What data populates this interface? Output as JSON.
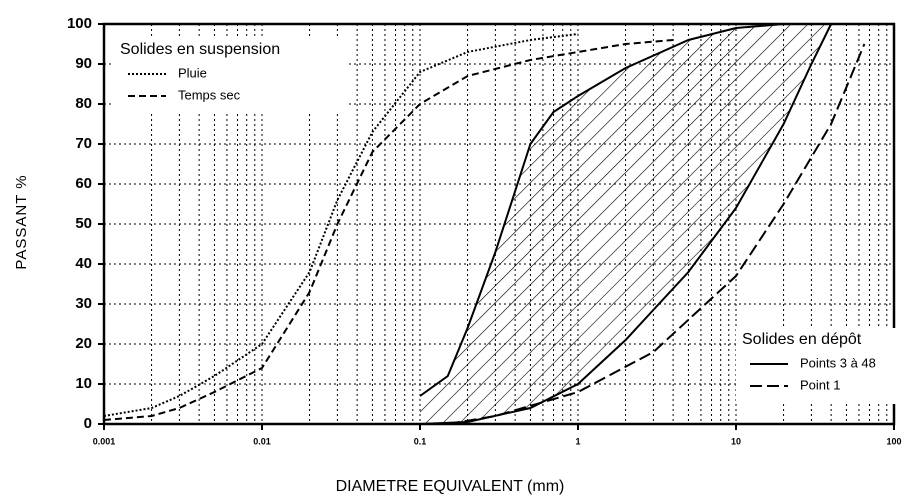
{
  "chart_data": {
    "type": "line",
    "xlabel": "DIAMETRE EQUIVALENT (mm)",
    "ylabel": "PASSANT %",
    "log_x": true,
    "grid": true,
    "xlim": [
      0.001,
      100
    ],
    "ylim": [
      0,
      100
    ],
    "xticks": [
      0.001,
      0.01,
      0.1,
      1,
      10,
      100
    ],
    "xminorticks": [
      0.002,
      0.003,
      0.004,
      0.005,
      0.006,
      0.007,
      0.008,
      0.009,
      0.02,
      0.03,
      0.04,
      0.05,
      0.06,
      0.07,
      0.08,
      0.09,
      0.2,
      0.3,
      0.4,
      0.5,
      0.6,
      0.7,
      0.8,
      0.9,
      2,
      3,
      4,
      5,
      6,
      7,
      8,
      9,
      20,
      30,
      40,
      50,
      60,
      70,
      80,
      90
    ],
    "yticks": [
      0,
      10,
      20,
      30,
      40,
      50,
      60,
      70,
      80,
      90,
      100
    ],
    "legend_groups": [
      {
        "title": "Solides en suspension",
        "position": "upper left"
      },
      {
        "title": "Solides en dépôt",
        "position": "lower right"
      }
    ],
    "series": [
      {
        "name": "Pluie",
        "group": 0,
        "style": "dotted",
        "color": "#000000",
        "x": [
          0.001,
          0.002,
          0.003,
          0.005,
          0.01,
          0.02,
          0.03,
          0.05,
          0.1,
          0.2,
          0.5,
          1
        ],
        "values": [
          2,
          4,
          7,
          12,
          20,
          38,
          56,
          73,
          88,
          93,
          96,
          97.5
        ]
      },
      {
        "name": "Temps sec",
        "group": 0,
        "style": "dashed",
        "color": "#000000",
        "x": [
          0.001,
          0.002,
          0.003,
          0.005,
          0.01,
          0.02,
          0.03,
          0.05,
          0.1,
          0.2,
          0.5,
          1,
          2,
          4
        ],
        "values": [
          1,
          2,
          4,
          8,
          14,
          33,
          50,
          68,
          80,
          87,
          91,
          93,
          95,
          96
        ]
      },
      {
        "name": "Points 3 à 48",
        "group": 1,
        "style": "solid",
        "color": "#000000",
        "hatched": true,
        "upper": {
          "x": [
            0.1,
            0.15,
            0.2,
            0.3,
            0.5,
            0.7,
            1,
            2,
            5,
            10,
            20,
            25
          ],
          "values": [
            7,
            12,
            24,
            43,
            70,
            78,
            82,
            89,
            96,
            99,
            100,
            100
          ]
        },
        "lower": {
          "x": [
            0.1,
            0.2,
            0.5,
            1,
            2,
            5,
            10,
            20,
            30,
            40
          ],
          "values": [
            0,
            0.5,
            4,
            10,
            21,
            38,
            54,
            75,
            90,
            100
          ]
        }
      },
      {
        "name": "Point 1",
        "group": 1,
        "style": "longdash",
        "color": "#000000",
        "x": [
          0.15,
          0.3,
          1,
          3,
          10,
          20,
          40,
          65
        ],
        "values": [
          0,
          2,
          8,
          18,
          37,
          55,
          75,
          95
        ]
      }
    ]
  }
}
